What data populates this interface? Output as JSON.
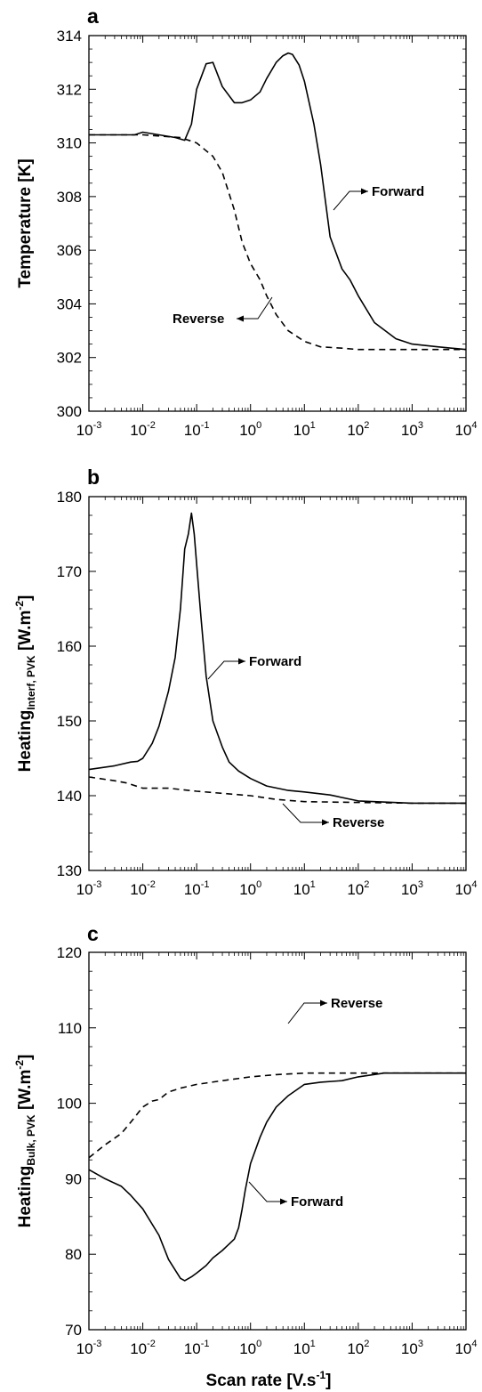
{
  "chart_data": [
    {
      "panel": "a",
      "type": "line",
      "xscale": "log",
      "xlim": [
        0.001,
        10000
      ],
      "ylim": [
        300,
        314
      ],
      "xlabel": "",
      "ylabel": "Temperature [K]",
      "xticks": [
        {
          "base": "10",
          "exp": "-3"
        },
        {
          "base": "10",
          "exp": "-2"
        },
        {
          "base": "10",
          "exp": "-1"
        },
        {
          "base": "10",
          "exp": "0"
        },
        {
          "base": "10",
          "exp": "1"
        },
        {
          "base": "10",
          "exp": "2"
        },
        {
          "base": "10",
          "exp": "3"
        },
        {
          "base": "10",
          "exp": "4"
        }
      ],
      "yticks": [
        "300",
        "302",
        "304",
        "306",
        "308",
        "310",
        "312",
        "314"
      ],
      "series": [
        {
          "name": "Forward",
          "style": "solid",
          "x": [
            0.001,
            0.003,
            0.007,
            0.01,
            0.02,
            0.04,
            0.06,
            0.08,
            0.1,
            0.15,
            0.2,
            0.3,
            0.5,
            0.7,
            1,
            1.5,
            2,
            3,
            4,
            5,
            6,
            8,
            10,
            15,
            20,
            30,
            50,
            70,
            100,
            200,
            500,
            1000,
            3000,
            10000
          ],
          "y": [
            310.3,
            310.3,
            310.3,
            310.4,
            310.3,
            310.2,
            310.1,
            310.7,
            312.0,
            312.95,
            313.0,
            312.1,
            311.5,
            311.5,
            311.6,
            311.9,
            312.4,
            313.0,
            313.25,
            313.35,
            313.3,
            312.9,
            312.3,
            310.7,
            309.2,
            306.5,
            305.3,
            304.9,
            304.3,
            303.3,
            302.7,
            302.5,
            302.4,
            302.3
          ]
        },
        {
          "name": "Reverse",
          "style": "dashed",
          "x": [
            0.001,
            0.01,
            0.05,
            0.1,
            0.2,
            0.3,
            0.5,
            0.7,
            1,
            1.5,
            2,
            3,
            5,
            10,
            20,
            50,
            100,
            1000,
            10000
          ],
          "y": [
            310.3,
            310.3,
            310.2,
            310.0,
            309.5,
            308.9,
            307.5,
            306.3,
            305.5,
            304.9,
            304.3,
            303.6,
            303.0,
            302.6,
            302.4,
            302.35,
            302.3,
            302.3,
            302.3
          ]
        }
      ],
      "annotations": [
        {
          "text": "Forward",
          "x": 15,
          "y": 308
        },
        {
          "text": "Reverse",
          "x": 2,
          "y": 304.3
        }
      ]
    },
    {
      "panel": "b",
      "type": "line",
      "xscale": "log",
      "xlim": [
        0.001,
        10000
      ],
      "ylim": [
        130,
        180
      ],
      "xlabel": "",
      "ylabel": "Heating",
      "ylabel_sub": "Interf, PVK",
      "ylabel_unit": " [W.m",
      "ylabel_unit_sup": "-2",
      "ylabel_end": "]",
      "xticks": [
        {
          "base": "10",
          "exp": "-3"
        },
        {
          "base": "10",
          "exp": "-2"
        },
        {
          "base": "10",
          "exp": "-1"
        },
        {
          "base": "10",
          "exp": "0"
        },
        {
          "base": "10",
          "exp": "1"
        },
        {
          "base": "10",
          "exp": "2"
        },
        {
          "base": "10",
          "exp": "3"
        },
        {
          "base": "10",
          "exp": "4"
        }
      ],
      "yticks": [
        "130",
        "140",
        "150",
        "160",
        "170",
        "180"
      ],
      "series": [
        {
          "name": "Forward",
          "style": "solid",
          "x": [
            0.001,
            0.003,
            0.006,
            0.008,
            0.01,
            0.015,
            0.02,
            0.03,
            0.04,
            0.05,
            0.06,
            0.07,
            0.08,
            0.09,
            0.1,
            0.12,
            0.15,
            0.2,
            0.3,
            0.4,
            0.6,
            1,
            2,
            5,
            10,
            30,
            100,
            1000,
            10000
          ],
          "y": [
            143.5,
            144.0,
            144.5,
            144.6,
            145.0,
            147.0,
            149.3,
            154.0,
            158.5,
            165.0,
            173.0,
            175.0,
            177.8,
            175.0,
            171.0,
            164.0,
            156.0,
            150.0,
            146.5,
            144.5,
            143.3,
            142.3,
            141.3,
            140.7,
            140.5,
            140.1,
            139.3,
            139.0,
            139.0
          ]
        },
        {
          "name": "Reverse",
          "style": "dashed",
          "x": [
            0.001,
            0.003,
            0.005,
            0.01,
            0.03,
            0.1,
            1,
            3,
            10,
            100,
            1000,
            10000
          ],
          "y": [
            142.5,
            142.0,
            141.7,
            141.0,
            141.0,
            140.6,
            140.0,
            139.5,
            139.2,
            139.1,
            139.0,
            139.0
          ]
        }
      ],
      "annotations": [
        {
          "text": "Forward",
          "x": 0.12,
          "y": 155
        },
        {
          "text": "Reverse",
          "x": 10,
          "y": 139
        }
      ]
    },
    {
      "panel": "c",
      "type": "line",
      "xscale": "log",
      "xlim": [
        0.001,
        10000
      ],
      "ylim": [
        70,
        120
      ],
      "xlabel": "Scan rate [V.s",
      "xlabel_sup": "-1",
      "xlabel_end": "]",
      "ylabel": "Heating",
      "ylabel_sub": "Bulk, PVK",
      "ylabel_unit": " [W.m",
      "ylabel_unit_sup": "-2",
      "ylabel_end": "]",
      "xticks": [
        {
          "base": "10",
          "exp": "-3"
        },
        {
          "base": "10",
          "exp": "-2"
        },
        {
          "base": "10",
          "exp": "-1"
        },
        {
          "base": "10",
          "exp": "0"
        },
        {
          "base": "10",
          "exp": "1"
        },
        {
          "base": "10",
          "exp": "2"
        },
        {
          "base": "10",
          "exp": "3"
        },
        {
          "base": "10",
          "exp": "4"
        }
      ],
      "yticks": [
        "70",
        "80",
        "90",
        "100",
        "110",
        "120"
      ],
      "series": [
        {
          "name": "Forward",
          "style": "solid",
          "x": [
            0.001,
            0.002,
            0.004,
            0.006,
            0.01,
            0.02,
            0.03,
            0.05,
            0.06,
            0.08,
            0.1,
            0.15,
            0.2,
            0.3,
            0.5,
            0.6,
            0.7,
            0.8,
            1,
            1.5,
            2,
            3,
            5,
            10,
            20,
            50,
            100,
            300,
            1000,
            10000
          ],
          "y": [
            91.2,
            90.0,
            89.0,
            87.8,
            86.0,
            82.5,
            79.3,
            76.8,
            76.5,
            77.0,
            77.5,
            78.5,
            79.5,
            80.5,
            82.0,
            83.5,
            86.0,
            88.5,
            92.0,
            95.5,
            97.5,
            99.5,
            101.0,
            102.5,
            102.8,
            103.0,
            103.5,
            104.0,
            104.0,
            104.0
          ]
        },
        {
          "name": "Reverse",
          "style": "dashed",
          "x": [
            0.001,
            0.002,
            0.004,
            0.006,
            0.01,
            0.015,
            0.02,
            0.03,
            0.05,
            0.1,
            0.3,
            1,
            3,
            10,
            100,
            1000,
            10000
          ],
          "y": [
            92.8,
            94.5,
            96.0,
            97.5,
            99.5,
            100.3,
            100.5,
            101.5,
            102.0,
            102.5,
            103.0,
            103.5,
            103.8,
            104.0,
            104.0,
            104.0,
            104.0
          ]
        }
      ],
      "annotations": [
        {
          "text": "Reverse",
          "x": 5,
          "y": 103.8
        },
        {
          "text": "Forward",
          "x": 0.8,
          "y": 89
        }
      ]
    }
  ]
}
